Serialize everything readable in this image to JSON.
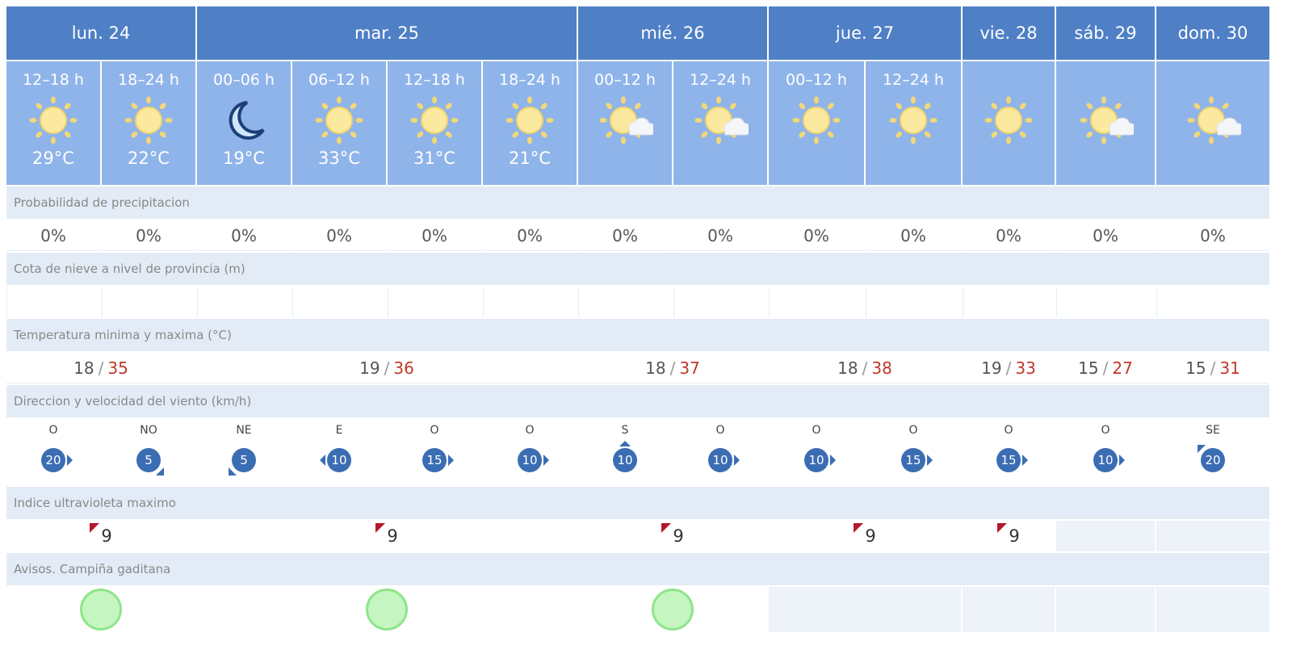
{
  "days": [
    {
      "label": "lun. 24",
      "span": 2,
      "tmin": "18",
      "tmax": "35",
      "uv": "9",
      "aviso": "green"
    },
    {
      "label": "mar. 25",
      "span": 4,
      "tmin": "19",
      "tmax": "36",
      "uv": "9",
      "aviso": "green"
    },
    {
      "label": "mié. 26",
      "span": 2,
      "tmin": "18",
      "tmax": "37",
      "uv": "9",
      "aviso": "green"
    },
    {
      "label": "jue. 27",
      "span": 2,
      "tmin": "18",
      "tmax": "38",
      "uv": "9",
      "aviso": ""
    },
    {
      "label": "vie. 28",
      "span": 1,
      "tmin": "19",
      "tmax": "33",
      "uv": "9",
      "aviso": ""
    },
    {
      "label": "sáb. 29",
      "span": 1,
      "tmin": "15",
      "tmax": "27",
      "uv": "",
      "aviso": ""
    },
    {
      "label": "dom. 30",
      "span": 1,
      "tmin": "15",
      "tmax": "31",
      "uv": "",
      "aviso": ""
    }
  ],
  "periods": [
    {
      "hours": "12–18 h",
      "icon": "sun-icon",
      "temp": "29°C",
      "precip": "0%",
      "wind_dir": "O",
      "wind_speed": "20"
    },
    {
      "hours": "18–24 h",
      "icon": "sun-icon",
      "temp": "22°C",
      "precip": "0%",
      "wind_dir": "NO",
      "wind_speed": "5"
    },
    {
      "hours": "00–06 h",
      "icon": "moon-icon",
      "temp": "19°C",
      "precip": "0%",
      "wind_dir": "NE",
      "wind_speed": "5"
    },
    {
      "hours": "06–12 h",
      "icon": "sun-icon",
      "temp": "33°C",
      "precip": "0%",
      "wind_dir": "E",
      "wind_speed": "10"
    },
    {
      "hours": "12–18 h",
      "icon": "sun-icon",
      "temp": "31°C",
      "precip": "0%",
      "wind_dir": "O",
      "wind_speed": "15"
    },
    {
      "hours": "18–24 h",
      "icon": "sun-icon",
      "temp": "21°C",
      "precip": "0%",
      "wind_dir": "O",
      "wind_speed": "10"
    },
    {
      "hours": "00–12 h",
      "icon": "sun-cloud-icon",
      "temp": "",
      "precip": "0%",
      "wind_dir": "S",
      "wind_speed": "10"
    },
    {
      "hours": "12–24 h",
      "icon": "sun-cloud-icon",
      "temp": "",
      "precip": "0%",
      "wind_dir": "O",
      "wind_speed": "10"
    },
    {
      "hours": "00–12 h",
      "icon": "sun-icon",
      "temp": "",
      "precip": "0%",
      "wind_dir": "O",
      "wind_speed": "10"
    },
    {
      "hours": "12–24 h",
      "icon": "sun-icon",
      "temp": "",
      "precip": "0%",
      "wind_dir": "O",
      "wind_speed": "15"
    },
    {
      "hours": "",
      "icon": "sun-icon",
      "temp": "",
      "precip": "0%",
      "wind_dir": "O",
      "wind_speed": "15"
    },
    {
      "hours": "",
      "icon": "sun-cloud-icon",
      "temp": "",
      "precip": "0%",
      "wind_dir": "O",
      "wind_speed": "10"
    },
    {
      "hours": "",
      "icon": "sun-cloud-icon",
      "temp": "",
      "precip": "0%",
      "wind_dir": "SE",
      "wind_speed": "20"
    }
  ],
  "labels": {
    "precip": "Probabilidad de precipitacion",
    "snow": "Cota de nieve a nivel de provincia (m)",
    "temp": "Temperatura minima y maxima (°C)",
    "wind": "Direccion y velocidad del viento (km/h)",
    "uv": "Indice ultravioleta maximo",
    "avisos": "Avisos. Campiña gaditana"
  },
  "temp_separator": "/",
  "colors": {
    "header": "#4f80c6",
    "period": "#8fb4ea",
    "label_row": "#e3ecf6",
    "max_temp": "#c0392b",
    "wind_badge": "#3b6db3",
    "uv_flag": "#b3172c",
    "aviso_green": "#8ee58a"
  }
}
